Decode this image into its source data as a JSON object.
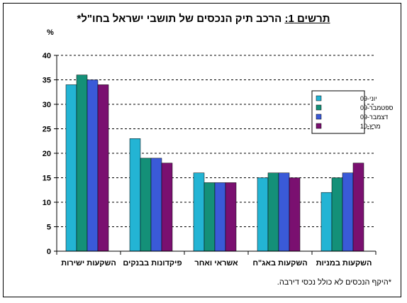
{
  "title": {
    "prefix": "תרשים 1:",
    "text": "הרכב תיק הנכסים של תושבי ישראל בחו\"ל*"
  },
  "footnote": "*היקף הנכסים לא כולל נכסי דירבה.",
  "chart_data": {
    "type": "bar",
    "title": "תרשים 1: הרכב תיק הנכסים של תושבי ישראל בחו\"ל*",
    "ylabel": "%",
    "xlabel": "",
    "ylim": [
      0,
      40
    ],
    "yticks": [
      0,
      5,
      10,
      15,
      20,
      25,
      30,
      35,
      40
    ],
    "grid": "horizontal dashed",
    "legend_position": "right",
    "categories": [
      "השקעות ישירות",
      "פיקדונות בבנקים",
      "אשראי ואחר",
      "השקעות באג\"ח",
      "השקעות במניות"
    ],
    "series": [
      {
        "name": "יוני-09",
        "color": "#23b4d4",
        "values": [
          34,
          23,
          16,
          15,
          12
        ]
      },
      {
        "name": "ספטמבר-09",
        "color": "#149078",
        "values": [
          36,
          19,
          14,
          16,
          15
        ]
      },
      {
        "name": "דצמבר-09",
        "color": "#3a5ad8",
        "values": [
          35,
          19,
          14,
          16,
          16
        ]
      },
      {
        "name": "מרץ-10",
        "color": "#7a1070",
        "values": [
          34,
          18,
          14,
          15,
          18
        ]
      }
    ]
  }
}
